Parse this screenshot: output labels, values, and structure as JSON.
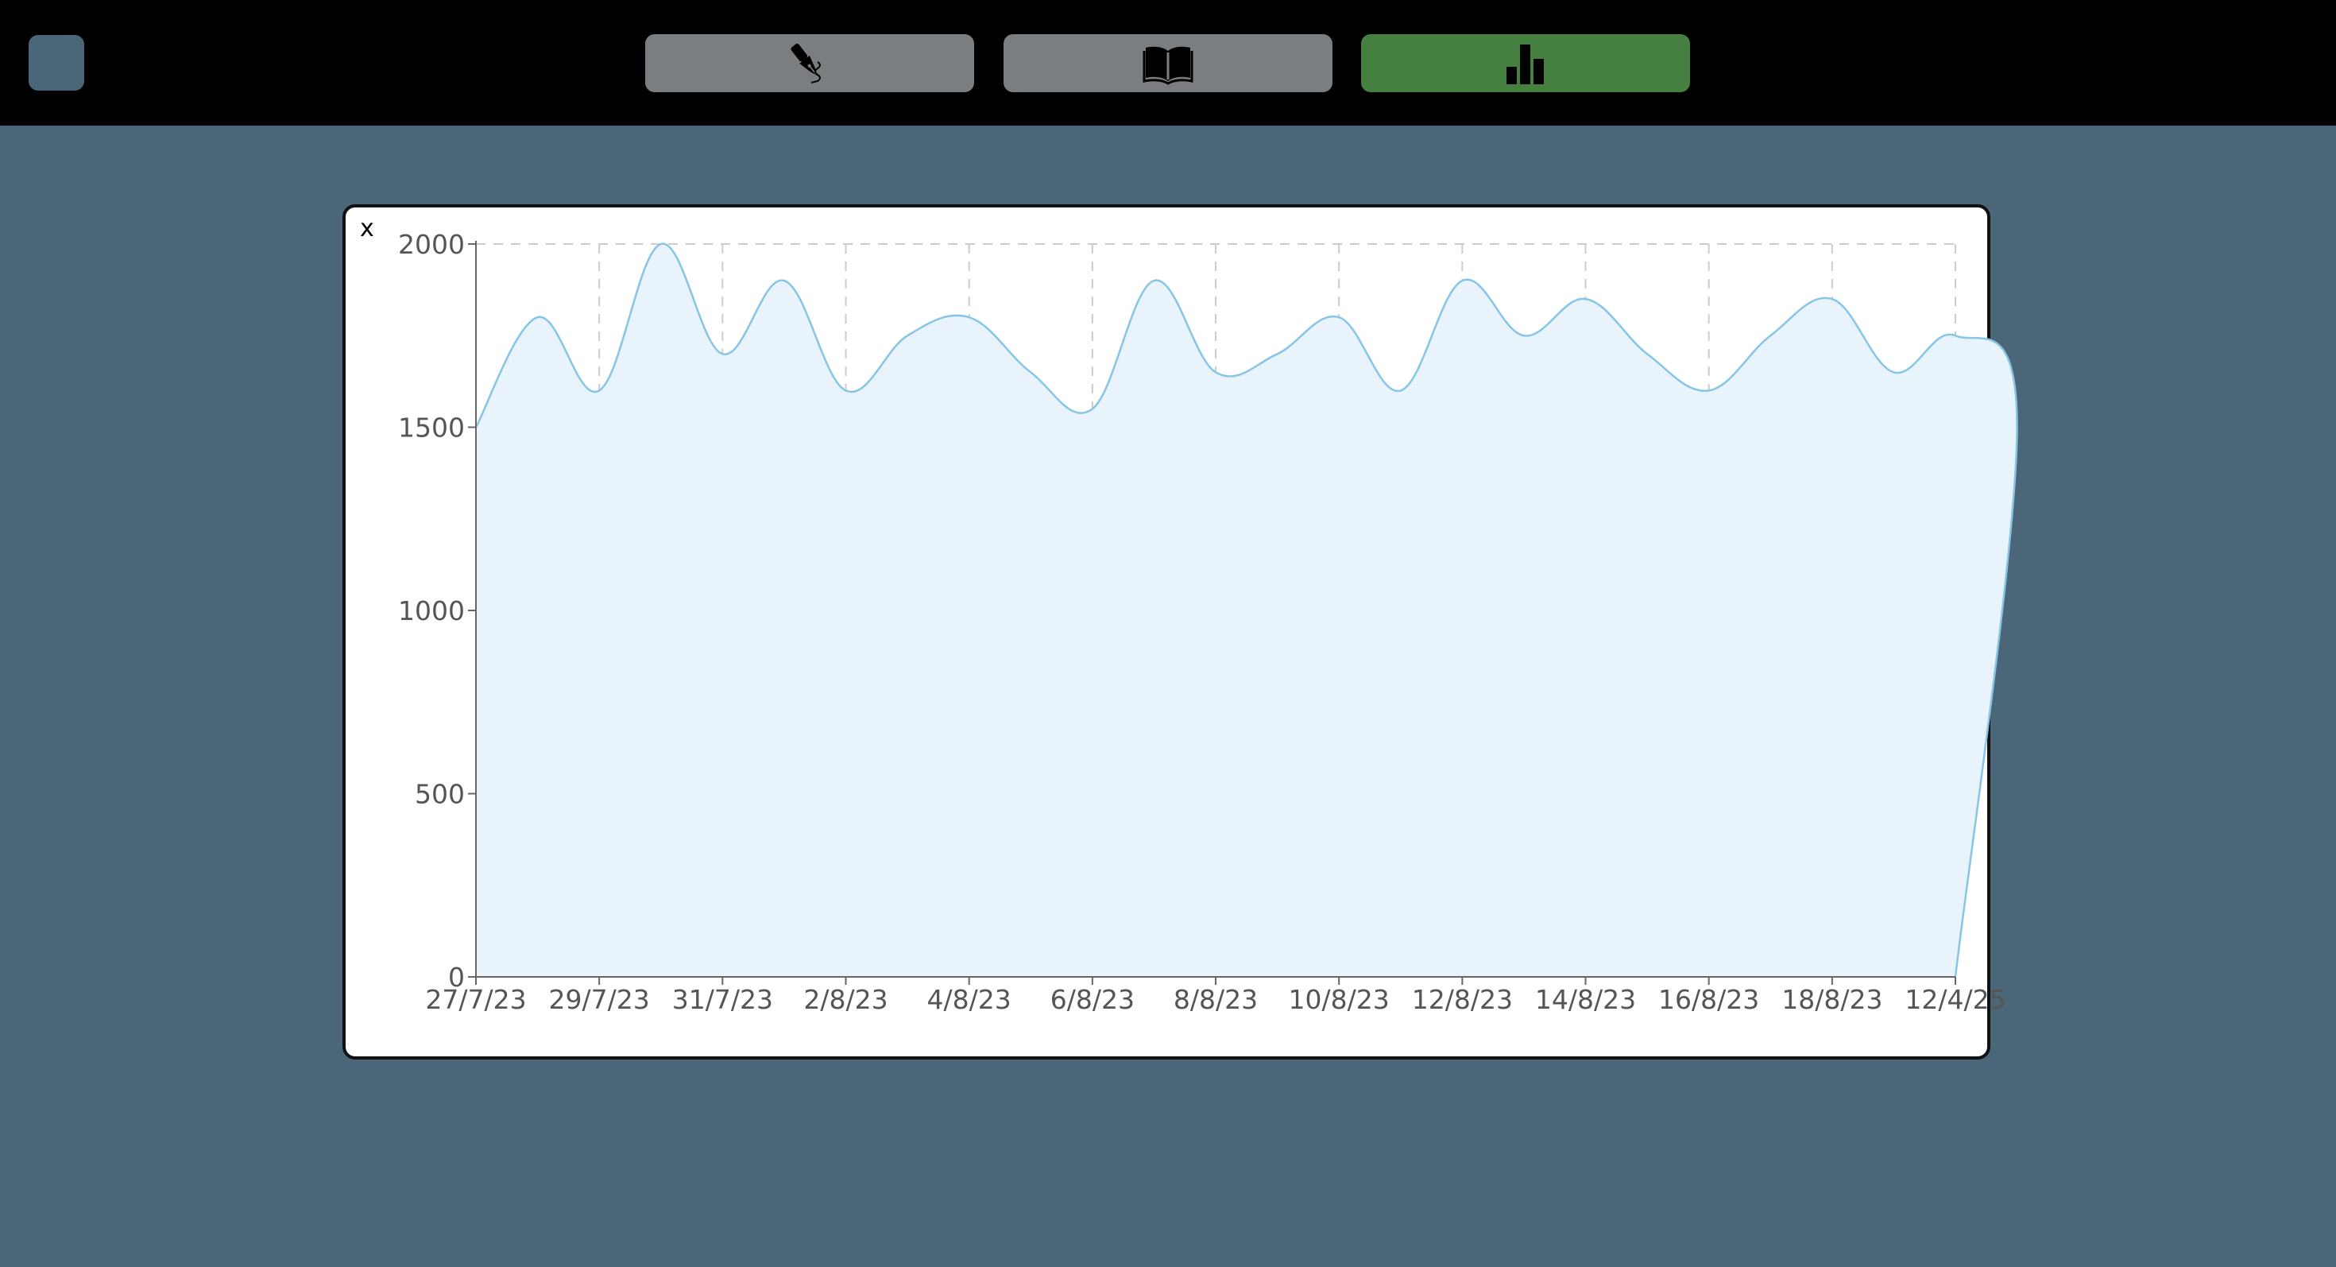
{
  "nav": {
    "write_icon": "fountain-pen-icon",
    "read_icon": "open-book-icon",
    "stats_icon": "bar-chart-icon",
    "active_color": "#468040",
    "inactive_color": "#7b7e80"
  },
  "modal": {
    "close_label": "x"
  },
  "chart_data": {
    "type": "area",
    "x_ticks": [
      "27/7/23",
      "29/7/23",
      "31/7/23",
      "2/8/23",
      "4/8/23",
      "6/8/23",
      "8/8/23",
      "10/8/23",
      "12/8/23",
      "14/8/23",
      "16/8/23",
      "18/8/23",
      "12/4/25"
    ],
    "y_ticks": [
      0,
      500,
      1000,
      1500,
      2000
    ],
    "ylim": [
      0,
      2000
    ],
    "grid": true,
    "line_color": "#87c5e6",
    "fill_color": "#e8f3fc",
    "x": [
      "27/7/23",
      "28/7/23",
      "29/7/23",
      "30/7/23",
      "31/7/23",
      "1/8/23",
      "2/8/23",
      "3/8/23",
      "4/8/23",
      "5/8/23",
      "6/8/23",
      "7/8/23",
      "8/8/23",
      "9/8/23",
      "10/8/23",
      "11/8/23",
      "12/8/23",
      "13/8/23",
      "14/8/23",
      "15/8/23",
      "16/8/23",
      "17/8/23",
      "18/8/23",
      "19/8/23",
      "20/8/23",
      "21/8/23",
      "12/4/25"
    ],
    "values": [
      1500,
      1800,
      1600,
      2000,
      1700,
      1900,
      1600,
      1750,
      1800,
      1650,
      1550,
      1900,
      1650,
      1700,
      1800,
      1600,
      1900,
      1750,
      1850,
      1700,
      1600,
      1750,
      1850,
      1650,
      1750,
      1500,
      0
    ]
  }
}
